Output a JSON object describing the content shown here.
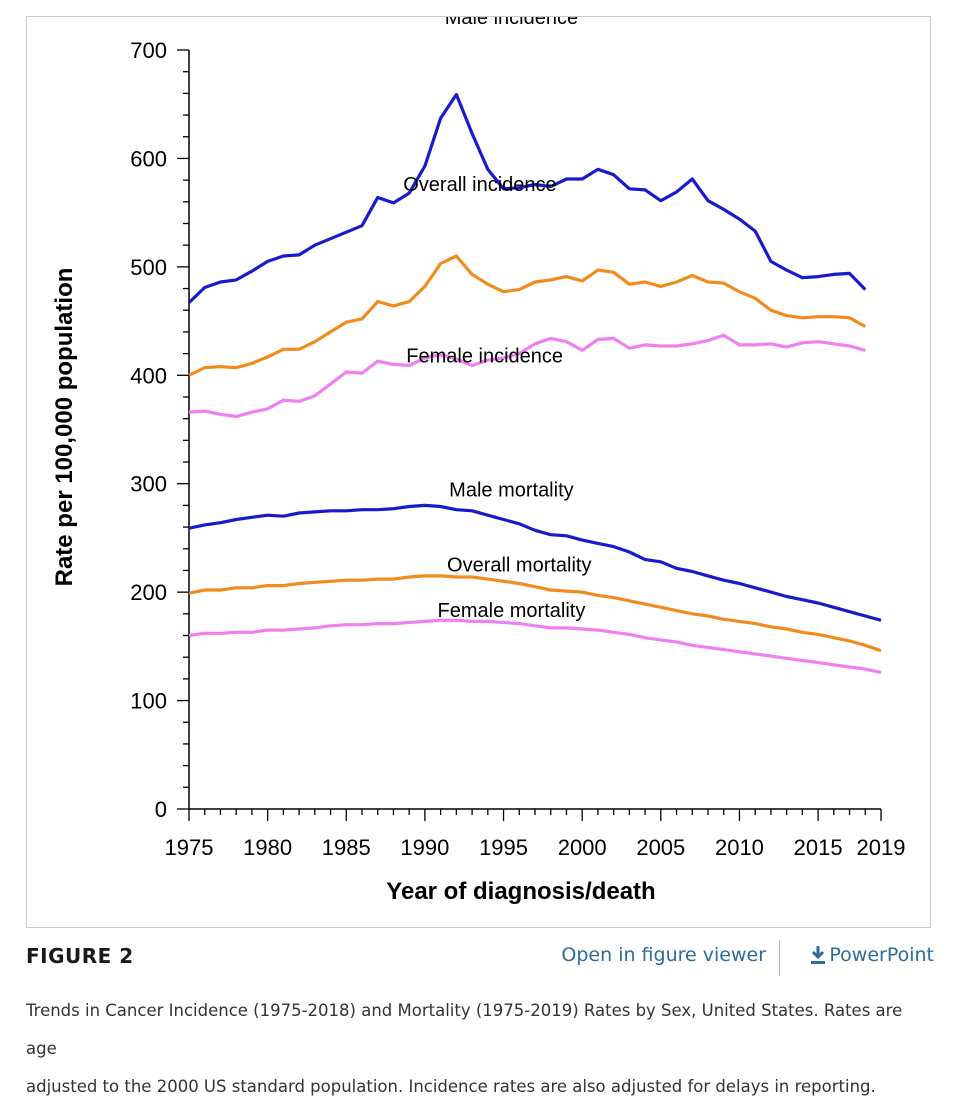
{
  "figure": {
    "label": "FIGURE 2",
    "open_viewer_label": "Open in figure viewer",
    "powerpoint_label": "PowerPoint",
    "download_icon": "download-arrow-icon",
    "caption_line1": "Trends in Cancer Incidence (1975-2018) and Mortality (1975-2019) Rates by Sex, United States. Rates are age",
    "caption_line2": "adjusted to the 2000 US standard population. Incidence rates are also adjusted for delays in reporting.",
    "link_color": "#2c6c9c"
  },
  "chart_data": {
    "type": "line",
    "title": "",
    "xlabel": "Year of diagnosis/death",
    "ylabel": "Rate per 100,000 population",
    "xlim": [
      1975,
      2019
    ],
    "ylim": [
      0,
      700
    ],
    "x_ticks": [
      "1975",
      "1980",
      "1985",
      "1990",
      "1995",
      "2000",
      "2005",
      "2010",
      "2015",
      "2019"
    ],
    "y_ticks": [
      "0",
      "100",
      "200",
      "300",
      "400",
      "500",
      "600",
      "700"
    ],
    "grid": false,
    "legend": "none",
    "series": [
      {
        "name": "Male incidence",
        "color": "#1a1acd",
        "x": [
          1975,
          1976,
          1977,
          1978,
          1979,
          1980,
          1981,
          1982,
          1983,
          1984,
          1985,
          1986,
          1987,
          1988,
          1989,
          1990,
          1991,
          1992,
          1993,
          1994,
          1995,
          1996,
          1997,
          1998,
          1999,
          2000,
          2001,
          2002,
          2003,
          2004,
          2005,
          2006,
          2007,
          2008,
          2009,
          2010,
          2011,
          2012,
          2013,
          2014,
          2015,
          2016,
          2017,
          2018
        ],
        "y": [
          467,
          481,
          486,
          488,
          496,
          505,
          510,
          511,
          520,
          526,
          532,
          538,
          564,
          559,
          568,
          593,
          637,
          659,
          623,
          590,
          572,
          573,
          576,
          574,
          581,
          581,
          590,
          585,
          572,
          571,
          561,
          569,
          581,
          561,
          553,
          544,
          533,
          505,
          497,
          490,
          491,
          493,
          494,
          479
        ]
      },
      {
        "name": "Overall incidence",
        "color": "#f28b1e",
        "x": [
          1975,
          1976,
          1977,
          1978,
          1979,
          1980,
          1981,
          1982,
          1983,
          1984,
          1985,
          1986,
          1987,
          1988,
          1989,
          1990,
          1991,
          1992,
          1993,
          1994,
          1995,
          1996,
          1997,
          1998,
          1999,
          2000,
          2001,
          2002,
          2003,
          2004,
          2005,
          2006,
          2007,
          2008,
          2009,
          2010,
          2011,
          2012,
          2013,
          2014,
          2015,
          2016,
          2017,
          2018
        ],
        "y": [
          400,
          407,
          408,
          407,
          411,
          417,
          424,
          424,
          431,
          440,
          449,
          452,
          468,
          464,
          468,
          482,
          503,
          510,
          493,
          484,
          477,
          479,
          486,
          488,
          491,
          487,
          497,
          495,
          484,
          486,
          482,
          486,
          492,
          486,
          485,
          477,
          471,
          460,
          455,
          453,
          454,
          454,
          453,
          445
        ]
      },
      {
        "name": "Female incidence",
        "color": "#f07ff0",
        "x": [
          1975,
          1976,
          1977,
          1978,
          1979,
          1980,
          1981,
          1982,
          1983,
          1984,
          1985,
          1986,
          1987,
          1988,
          1989,
          1990,
          1991,
          1992,
          1993,
          1994,
          1995,
          1996,
          1997,
          1998,
          1999,
          2000,
          2001,
          2002,
          2003,
          2004,
          2005,
          2006,
          2007,
          2008,
          2009,
          2010,
          2011,
          2012,
          2013,
          2014,
          2015,
          2016,
          2017,
          2018
        ],
        "y": [
          366,
          367,
          364,
          362,
          366,
          369,
          377,
          376,
          381,
          392,
          403,
          402,
          413,
          410,
          409,
          416,
          419,
          415,
          409,
          414,
          416,
          420,
          429,
          434,
          431,
          423,
          433,
          434,
          425,
          428,
          427,
          427,
          429,
          432,
          437,
          428,
          428,
          429,
          426,
          430,
          431,
          429,
          427,
          423
        ]
      },
      {
        "name": "Male mortality",
        "color": "#1a1acd",
        "x": [
          1975,
          1976,
          1977,
          1978,
          1979,
          1980,
          1981,
          1982,
          1983,
          1984,
          1985,
          1986,
          1987,
          1988,
          1989,
          1990,
          1991,
          1992,
          1993,
          1994,
          1995,
          1996,
          1997,
          1998,
          1999,
          2000,
          2001,
          2002,
          2003,
          2004,
          2005,
          2006,
          2007,
          2008,
          2009,
          2010,
          2011,
          2012,
          2013,
          2014,
          2015,
          2016,
          2017,
          2018,
          2019
        ],
        "y": [
          259,
          262,
          264,
          267,
          269,
          271,
          270,
          273,
          274,
          275,
          275,
          276,
          276,
          277,
          279,
          280,
          279,
          276,
          275,
          271,
          267,
          263,
          257,
          253,
          252,
          248,
          245,
          242,
          237,
          230,
          228,
          222,
          219,
          215,
          211,
          208,
          204,
          200,
          196,
          193,
          190,
          186,
          182,
          178,
          174
        ]
      },
      {
        "name": "Overall mortality",
        "color": "#f28b1e",
        "x": [
          1975,
          1976,
          1977,
          1978,
          1979,
          1980,
          1981,
          1982,
          1983,
          1984,
          1985,
          1986,
          1987,
          1988,
          1989,
          1990,
          1991,
          1992,
          1993,
          1994,
          1995,
          1996,
          1997,
          1998,
          1999,
          2000,
          2001,
          2002,
          2003,
          2004,
          2005,
          2006,
          2007,
          2008,
          2009,
          2010,
          2011,
          2012,
          2013,
          2014,
          2015,
          2016,
          2017,
          2018,
          2019
        ],
        "y": [
          199,
          202,
          202,
          204,
          204,
          206,
          206,
          208,
          209,
          210,
          211,
          211,
          212,
          212,
          214,
          215,
          215,
          214,
          214,
          212,
          210,
          208,
          205,
          202,
          201,
          200,
          197,
          195,
          192,
          189,
          186,
          183,
          180,
          178,
          175,
          173,
          171,
          168,
          166,
          163,
          161,
          158,
          155,
          151,
          146
        ]
      },
      {
        "name": "Female mortality",
        "color": "#f07ff0",
        "x": [
          1975,
          1976,
          1977,
          1978,
          1979,
          1980,
          1981,
          1982,
          1983,
          1984,
          1985,
          1986,
          1987,
          1988,
          1989,
          1990,
          1991,
          1992,
          1993,
          1994,
          1995,
          1996,
          1997,
          1998,
          1999,
          2000,
          2001,
          2002,
          2003,
          2004,
          2005,
          2006,
          2007,
          2008,
          2009,
          2010,
          2011,
          2012,
          2013,
          2014,
          2015,
          2016,
          2017,
          2018,
          2019
        ],
        "y": [
          160,
          162,
          162,
          163,
          163,
          165,
          165,
          166,
          167,
          169,
          170,
          170,
          171,
          171,
          172,
          173,
          174,
          174,
          173,
          173,
          172,
          171,
          169,
          167,
          167,
          166,
          165,
          163,
          161,
          158,
          156,
          154,
          151,
          149,
          147,
          145,
          143,
          141,
          139,
          137,
          135,
          133,
          131,
          129,
          126
        ]
      }
    ]
  }
}
